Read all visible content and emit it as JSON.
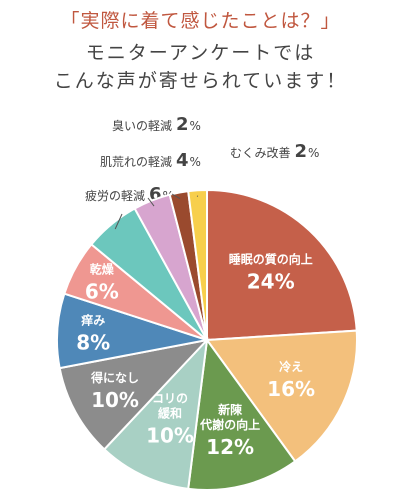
{
  "header": {
    "line1": "「実際に着て感じたことは？」",
    "line2": "モニターアンケートでは",
    "line3": "こんな声が寄せられています！"
  },
  "chart_data": {
    "type": "pie",
    "title": "",
    "unit": "%",
    "slices": [
      {
        "label": [
          "睡眠の質の向上"
        ],
        "value": 24,
        "color": "#c5604a",
        "text_color": "#ffffff"
      },
      {
        "label": [
          "冷え"
        ],
        "value": 16,
        "color": "#f3c07c",
        "text_color": "#ffffff"
      },
      {
        "label": [
          "新陳",
          "代謝の向上"
        ],
        "value": 12,
        "color": "#6b9a4f",
        "text_color": "#ffffff"
      },
      {
        "label": [
          "コリの",
          "緩和"
        ],
        "value": 10,
        "color": "#a8d0c4",
        "text_color": "#ffffff"
      },
      {
        "label": [
          "得になし"
        ],
        "value": 10,
        "color": "#8c8c8c",
        "text_color": "#ffffff"
      },
      {
        "label": [
          "痒み"
        ],
        "value": 8,
        "color": "#4f88b8",
        "text_color": "#ffffff"
      },
      {
        "label": [
          "乾燥"
        ],
        "value": 6,
        "color": "#ef9791",
        "text_color": "#ffffff"
      },
      {
        "label": [
          "疲労の軽減"
        ],
        "value": 6,
        "color": "#6cc7bd",
        "text_color": "#444444"
      },
      {
        "label": [
          "肌荒れの軽減"
        ],
        "value": 4,
        "color": "#d7a5cf",
        "text_color": "#444444"
      },
      {
        "label": [
          "臭いの軽減"
        ],
        "value": 2,
        "color": "#9a4a2e",
        "text_color": "#444444"
      },
      {
        "label": [
          "むくみ改善"
        ],
        "value": 2,
        "color": "#f7cf4c",
        "text_color": "#444444"
      }
    ]
  }
}
